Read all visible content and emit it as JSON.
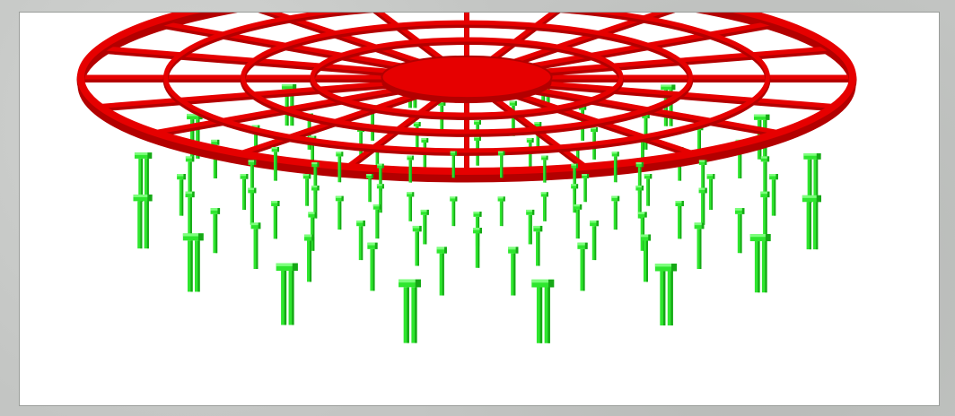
{
  "scene": {
    "subject": "3d-structural-model",
    "colors": {
      "background": "#ffffff",
      "frame": "#c3c5c3",
      "roof": "#e60000",
      "roof_dark": "#b30000",
      "roof_light": "#ff2a2a",
      "pile": "#2ee62e",
      "pile_dark": "#16a816",
      "pile_light": "#7dff7d"
    }
  }
}
